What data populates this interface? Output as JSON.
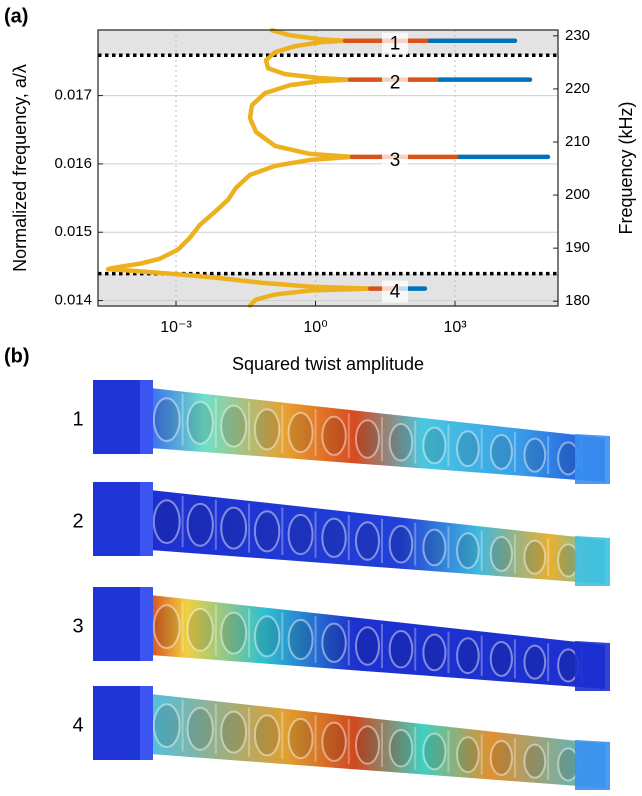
{
  "chart_data": {
    "type": "line",
    "xlabel": "Squared twist amplitude",
    "ylabel": "Normalized frequency, a/λ",
    "y2label": "Frequency (kHz)",
    "xscale": "log",
    "xlim": [
      2.1e-05,
      164000
    ],
    "xticks": [
      {
        "value": 0.001,
        "label": "10⁻³"
      },
      {
        "value": 1,
        "label": "10⁰"
      },
      {
        "value": 1000,
        "label": "10³"
      }
    ],
    "ylim": [
      0.01392,
      0.01796
    ],
    "yticks": [
      0.014,
      0.015,
      0.016,
      0.017
    ],
    "y2lim": [
      179.1,
      231.1
    ],
    "y2ticks": [
      180,
      190,
      200,
      210,
      220,
      230
    ],
    "grid": true,
    "band_edges": [
      0.014394,
      0.017591
    ],
    "series": [
      {
        "color": "#EDB120",
        "x": [
          0.116,
          0.283,
          1.25,
          4.31,
          1.25,
          0.362,
          0.135,
          0.0861,
          0.095,
          0.221,
          1.25,
          5.52,
          1.25,
          0.283,
          0.082,
          0.0431,
          0.039,
          0.0525,
          0.135,
          0.762,
          6.1,
          0.762,
          0.135,
          0.039,
          0.0195,
          0.0131,
          0.0069,
          0.00328,
          0.002,
          0.0011,
          0.000453,
          0.000168,
          4.88e-05,
          3.45e-05,
          0.000103,
          0.000743,
          0.0069,
          0.064,
          0.762,
          14.9,
          0.762,
          0.135,
          0.0525,
          0.039
        ],
        "y": [
          0.017956,
          0.017883,
          0.017825,
          0.017803,
          0.017781,
          0.017723,
          0.017635,
          0.017518,
          0.017401,
          0.017314,
          0.017255,
          0.017234,
          0.017212,
          0.017153,
          0.017036,
          0.016861,
          0.016672,
          0.016467,
          0.016263,
          0.016146,
          0.016102,
          0.016058,
          0.015971,
          0.015839,
          0.01565,
          0.015474,
          0.015299,
          0.015109,
          0.01492,
          0.014745,
          0.014613,
          0.01454,
          0.014482,
          0.01446,
          0.014438,
          0.014394,
          0.014336,
          0.014263,
          0.014204,
          0.014175,
          0.014146,
          0.014088,
          0.014015,
          0.013927
        ]
      },
      {
        "color": "#D95319",
        "x": [
          4.31,
          290,
          null,
          5.52,
          475,
          null,
          6.1,
          1280,
          null,
          14.9,
          65.6
        ],
        "y": [
          0.017803,
          0.017803,
          null,
          0.017234,
          0.017234,
          null,
          0.016102,
          0.016102,
          null,
          0.014175,
          0.014175
        ]
      },
      {
        "color": "#0072BD",
        "x": [
          290,
          19500,
          null,
          475,
          41000,
          null,
          1280,
          100000,
          null,
          65.6,
          226
        ],
        "y": [
          0.017803,
          0.017803,
          null,
          0.017234,
          0.017234,
          null,
          0.016102,
          0.016102,
          null,
          0.014175,
          0.014175
        ]
      }
    ],
    "annotations": [
      "1",
      "2",
      "3",
      "4"
    ]
  },
  "panel_labels": [
    "(a)",
    "(b)"
  ],
  "renderings": {
    "labels": [
      "1",
      "2",
      "3",
      "4"
    ]
  }
}
